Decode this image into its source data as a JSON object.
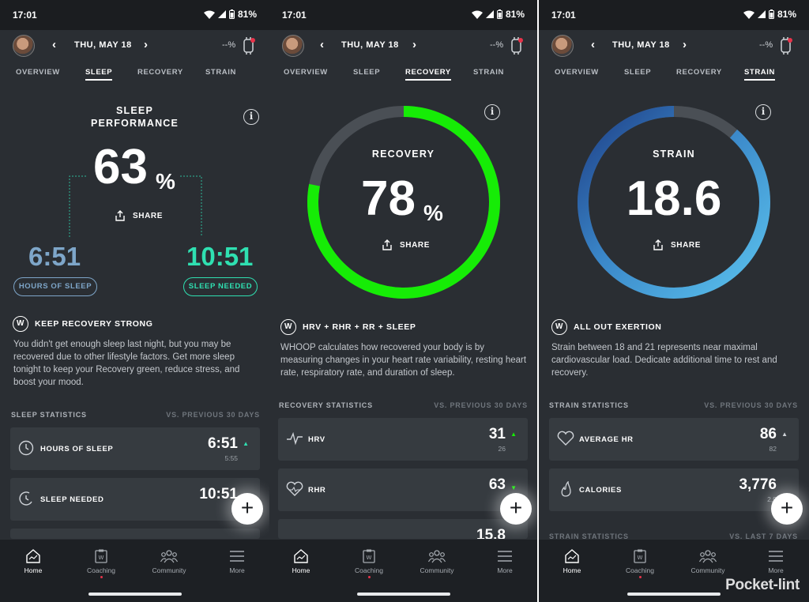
{
  "colors": {
    "recovery_green": "#16ec06",
    "sleep_blue": "#7ea6c9",
    "sleep_needed_teal": "#2fe0b1",
    "strain_blue": "#3f8fd3",
    "bg": "#2a2e33",
    "card": "#363b40"
  },
  "status": {
    "time": "17:01",
    "battery": "81%"
  },
  "header": {
    "date": "THU, MAY 18",
    "battery_pct": "--%"
  },
  "tabs": [
    "OVERVIEW",
    "SLEEP",
    "RECOVERY",
    "STRAIN"
  ],
  "sleep": {
    "title_line1": "SLEEP",
    "title_line2": "PERFORMANCE",
    "score": "63",
    "score_unit": "%",
    "share": "SHARE",
    "hours": "6:51",
    "hours_label": "HOURS OF SLEEP",
    "needed": "10:51",
    "needed_label": "SLEEP NEEDED",
    "insight_title": "KEEP RECOVERY STRONG",
    "insight_body": "You didn't get enough sleep last night, but you may be recovered due to other lifestyle factors. Get more sleep tonight to keep your Recovery green, reduce stress, and boost your mood.",
    "stats_title": "SLEEP STATISTICS",
    "stats_vs": "VS. PREVIOUS 30 DAYS",
    "stats": [
      {
        "label": "HOURS OF SLEEP",
        "value": "6:51",
        "prev": "5:55",
        "icon": "clock-icon"
      },
      {
        "label": "SLEEP NEEDED",
        "value": "10:51",
        "prev": "9:",
        "icon": "moon-clock-icon"
      }
    ]
  },
  "recovery": {
    "title": "RECOVERY",
    "score": "78",
    "score_unit": "%",
    "progress": 0.78,
    "share": "SHARE",
    "insight_title": "HRV + RHR + RR + SLEEP",
    "insight_body": "WHOOP calculates how recovered your body is by measuring changes in your heart rate variability, resting heart rate, respiratory rate, and duration of sleep.",
    "stats_title": "RECOVERY STATISTICS",
    "stats_vs": "VS. PREVIOUS 30 DAYS",
    "stats": [
      {
        "label": "HRV",
        "value": "31",
        "prev": "26",
        "icon": "pulse-icon"
      },
      {
        "label": "RHR",
        "value": "63",
        "prev": "",
        "icon": "heart-rate-icon"
      },
      {
        "label": "",
        "value": "15.8",
        "prev": "",
        "icon": "lungs-icon"
      }
    ]
  },
  "strain": {
    "title": "STRAIN",
    "score": "18.6",
    "progress": 0.886,
    "share": "SHARE",
    "insight_title": "ALL OUT EXERTION",
    "insight_body": "Strain between 18 and 21 represents near maximal cardiovascular load. Dedicate additional time to rest and recovery.",
    "stats_title": "STRAIN STATISTICS",
    "stats_vs": "VS. PREVIOUS 30 DAYS",
    "stats": [
      {
        "label": "AVERAGE HR",
        "value": "86",
        "prev": "82",
        "icon": "heart-icon"
      },
      {
        "label": "CALORIES",
        "value": "3,776",
        "prev": "2,9",
        "icon": "flame-icon"
      }
    ],
    "stats2_title": "STRAIN STATISTICS",
    "stats2_vs": "VS. LAST 7 DAYS"
  },
  "nav": [
    {
      "label": "Home",
      "icon": "home-icon"
    },
    {
      "label": "Coaching",
      "icon": "coaching-icon"
    },
    {
      "label": "Community",
      "icon": "community-icon"
    },
    {
      "label": "More",
      "icon": "menu-icon"
    }
  ],
  "watermark": "Pocket-lint"
}
